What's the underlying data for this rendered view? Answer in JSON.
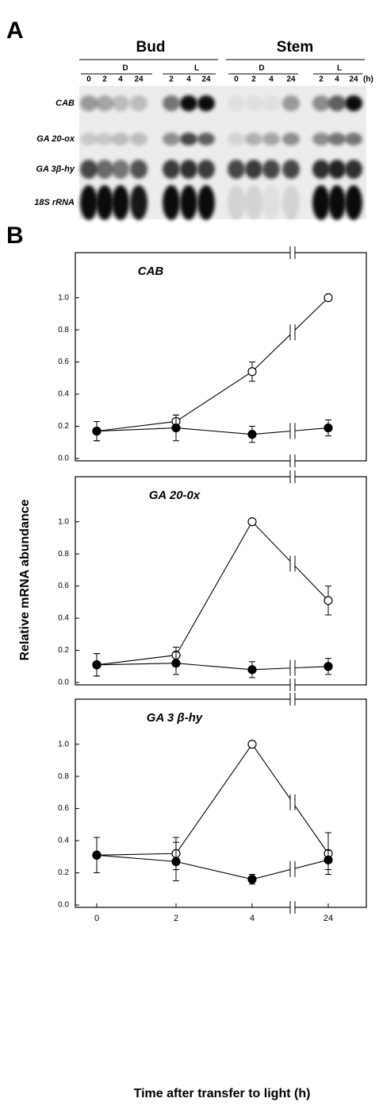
{
  "panel_a": {
    "label": "A",
    "groups": [
      "Bud",
      "Stem"
    ],
    "conditions": [
      "D",
      "L",
      "D",
      "L"
    ],
    "lanes": [
      "0",
      "2",
      "4",
      "24",
      "2",
      "4",
      "24",
      "0",
      "2",
      "4",
      "24",
      "2",
      "4",
      "24"
    ],
    "unit": "(h)",
    "genes": [
      "CAB",
      "GA 20-ox",
      "GA 3β-hy",
      "18S rRNA"
    ]
  },
  "panel_b": {
    "label": "B",
    "ylabel": "Relative mRNA abundance",
    "xlabel": "Time after transfer to light (h)"
  },
  "chart_data": [
    {
      "type": "line",
      "title": "CAB",
      "categories": [
        null,
        null,
        null,
        null
      ],
      "ylim": [
        0,
        1.28
      ],
      "yticks": [
        {
          "value": 0,
          "label": "0.0"
        },
        0.2,
        0.4,
        0.6,
        0.8,
        {
          "value": 1,
          "label": "1.0"
        }
      ],
      "series": [
        {
          "color": "#000000",
          "marker": "open",
          "values": [
            0.17,
            0.23,
            0.54,
            1.0
          ],
          "errors": [
            0.06,
            0.04,
            0.06,
            0
          ]
        },
        {
          "color": "#000000",
          "marker": "filled",
          "values": [
            0.17,
            0.19,
            0.15,
            0.19
          ],
          "errors": [
            0.06,
            0.08,
            0.05,
            0.05
          ]
        }
      ]
    },
    {
      "type": "line",
      "title": "GA 20-0x",
      "categories": [
        null,
        null,
        null,
        null
      ],
      "ylim": [
        0,
        1.28
      ],
      "yticks": [
        {
          "value": 0,
          "label": "0.0"
        },
        0.2,
        0.4,
        0.6,
        0.8,
        {
          "value": 1,
          "label": "1.0"
        }
      ],
      "series": [
        {
          "color": "#000000",
          "marker": "open",
          "values": [
            0.11,
            0.17,
            1.0,
            0.51
          ],
          "errors": [
            0.07,
            0.05,
            0,
            0.09
          ]
        },
        {
          "color": "#000000",
          "marker": "filled",
          "values": [
            0.11,
            0.12,
            0.08,
            0.1
          ],
          "errors": [
            0.07,
            0.07,
            0.05,
            0.05
          ]
        }
      ]
    },
    {
      "type": "line",
      "title": "GA 3 β-hy",
      "categories": [
        "0",
        "2",
        "4",
        "24"
      ],
      "ylim": [
        0,
        1.28
      ],
      "yticks": [
        {
          "value": 0,
          "label": "0.0"
        },
        0.2,
        0.4,
        0.6,
        0.8,
        {
          "value": 1,
          "label": "1.0"
        }
      ],
      "series": [
        {
          "color": "#000000",
          "marker": "open",
          "values": [
            0.31,
            0.32,
            1.0,
            0.32
          ],
          "errors": [
            0.11,
            0.1,
            0,
            0.13
          ]
        },
        {
          "color": "#000000",
          "marker": "filled",
          "values": [
            0.31,
            0.27,
            0.16,
            0.28
          ],
          "errors": [
            0.11,
            0.12,
            0.03,
            0.06
          ]
        }
      ]
    }
  ]
}
